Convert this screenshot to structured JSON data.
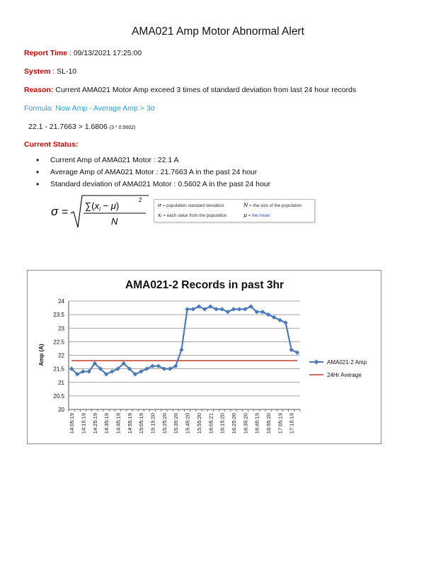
{
  "title": "AMA021 Amp Motor Abnormal Alert",
  "report_time": {
    "label": "Report Time",
    "value": " : 09/13/2021 17:25:00"
  },
  "system": {
    "label": "System",
    "value": " : SL-10"
  },
  "reason": {
    "label": "Reason:",
    "value": " Current AMA021 Motor Amp exceed 3 times of standard deviation from last 24 hour records"
  },
  "formula_text": "Formula: Now Amp  -  Average Amp > 3σ",
  "calc": {
    "main": "22.1 -  21.7663 >  1.6806",
    "note": "(3 * 0.5602)"
  },
  "current_status_label": "Current Status:",
  "status_items": [
    "Current Amp of AMA021 Motor : 22.1  A",
    "Average Amp of AMA021 Motor : 21.7663  A  in the past 24 hour",
    "Standard deviation of AMA021 Motor :  0.5602  A  in the past 24 hour"
  ],
  "formula_legend": {
    "sigma_sym": "σ",
    "sigma_desc": " = population standard deviation",
    "n_sym": "N",
    "n_desc": " = the size of the population",
    "xi_sym": "xᵢ",
    "xi_desc": " = each value from the population",
    "mu_sym": "μ",
    "mu_desc": " = the mean"
  },
  "colors": {
    "red_label": "#c00000",
    "formula_cyan": "#2a9fd6",
    "series_blue": "#4a7ab8",
    "average_red": "#c0392b"
  },
  "chart_data": {
    "type": "line",
    "title": "AMA021-2 Records in past 3hr",
    "ylabel": "Amp (A)",
    "xlabel": "",
    "ylim": [
      20,
      24
    ],
    "yticks": [
      "20",
      "20.5",
      "21",
      "21.5",
      "22",
      "22.5",
      "23",
      "23.5",
      "24"
    ],
    "grid": true,
    "legend_position": "right",
    "x_tick_labels": [
      "14:05:19",
      "14:15:19",
      "14:25:19",
      "14:35:19",
      "14:45:19",
      "14:55:19",
      "15:05:19",
      "15:15:20",
      "15:25:20",
      "15:35:20",
      "15:45:20",
      "15:55:20",
      "16:05:21",
      "16:15:20",
      "16:25:20",
      "16:35:20",
      "16:45:19",
      "16:55:20",
      "17:05:19",
      "17:15:19"
    ],
    "series": [
      {
        "name": "AMA021-2 Amp",
        "values": [
          21.5,
          21.3,
          21.4,
          21.4,
          21.7,
          21.5,
          21.3,
          21.4,
          21.5,
          21.7,
          21.5,
          21.3,
          21.4,
          21.5,
          21.6,
          21.6,
          21.5,
          21.5,
          21.6,
          22.2,
          23.7,
          23.7,
          23.8,
          23.7,
          23.8,
          23.7,
          23.7,
          23.6,
          23.7,
          23.7,
          23.7,
          23.8,
          23.6,
          23.6,
          23.5,
          23.4,
          23.3,
          23.2,
          22.2,
          22.1
        ]
      },
      {
        "name": "24Hr Average",
        "values": [
          21.8,
          21.8,
          21.8,
          21.8,
          21.8,
          21.8,
          21.8,
          21.8,
          21.8,
          21.8,
          21.8,
          21.8,
          21.8,
          21.8,
          21.8,
          21.8,
          21.8,
          21.8,
          21.8,
          21.8,
          21.8,
          21.8,
          21.8,
          21.8,
          21.8,
          21.8,
          21.8,
          21.8,
          21.8,
          21.8,
          21.8,
          21.8,
          21.8,
          21.8,
          21.8,
          21.8,
          21.8,
          21.8,
          21.8,
          21.8
        ]
      }
    ]
  }
}
